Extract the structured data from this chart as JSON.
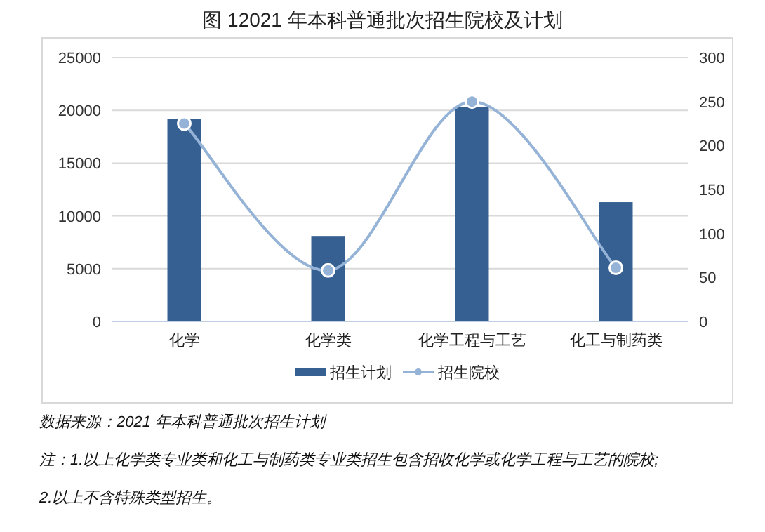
{
  "chart_data": {
    "type": "bar",
    "title": "图 12021 年本科普通批次招生院校及计划",
    "categories": [
      "化学",
      "化学类",
      "化学工程与工艺",
      "化工与制药类"
    ],
    "series": [
      {
        "name": "招生计划",
        "color": "#366092",
        "values": [
          19200,
          8100,
          20300,
          11300
        ]
      },
      {
        "name": "招生院校",
        "type": "line",
        "axis": "y2",
        "color": "#95b3d7",
        "marker": "circle",
        "values": [
          225,
          58,
          250,
          61
        ]
      }
    ],
    "ylim": [
      0,
      25000
    ],
    "yticks": [
      0,
      5000,
      10000,
      15000,
      20000,
      25000
    ],
    "y2lim": [
      0,
      300
    ],
    "y2ticks": [
      0,
      50,
      100,
      150,
      200,
      250,
      300
    ],
    "grid": "y",
    "legend": "bottom",
    "annotations": [
      "数据来源：2021 年本科普通批次招生计划",
      "注：1.以上化学类专业类和化工与制药类专业类招生包含招收化学或化学工程与工艺的院校;",
      "2.以上不含特殊类型招生。"
    ]
  }
}
